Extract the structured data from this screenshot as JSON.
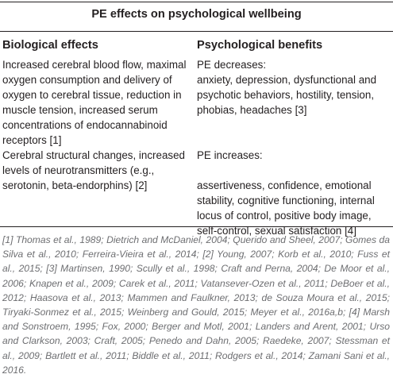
{
  "table": {
    "title": "PE effects on psychological wellbeing",
    "header_left": "Biological effects",
    "header_right": "Psychological benefits",
    "rows": [
      {
        "left": "Increased cerebral blood flow, maximal oxygen consumption and delivery of oxygen to cerebral tissue, reduction in muscle tension, increased serum concentrations of endocannabinoid receptors [1]",
        "right_intro": "PE decreases:",
        "right_body": "anxiety, depression, dysfunctional and psychotic behaviors, hostility, tension, phobias, headaches [3]"
      },
      {
        "left": "Cerebral structural changes, increased levels of neurotransmitters (e.g., serotonin, beta-endorphins) [2]",
        "right_intro": "PE increases:",
        "right_body": "assertiveness, confidence, emotional stability, cognitive functioning, internal locus of control, positive body image, self-control, sexual satisfaction [4]"
      }
    ],
    "footnote": "[1] Thomas et al., 1989; Dietrich and McDaniel, 2004; Querido and Sheel, 2007; Gomes da Silva et al., 2010; Ferreira-Vieira et al., 2014; [2] Young, 2007; Korb et al., 2010; Fuss et al., 2015; [3] Martinsen, 1990; Scully et al., 1998; Craft and Perna, 2004; De Moor et al., 2006; Knapen et al., 2009; Carek et al., 2011; Vatansever-Ozen et al., 2011; DeBoer et al., 2012; Haasova et al., 2013; Mammen and Faulkner, 2013; de Souza Moura et al., 2015; Tiryaki-Sonmez et al., 2015; Weinberg and Gould, 2015; Meyer et al., 2016a,b; [4] Marsh and Sonstroem, 1995; Fox, 2000; Berger and Motl, 2001; Landers and Arent, 2001; Urso and Clarkson, 2003; Craft, 2005; Penedo and Dahn, 2005; Raedeke, 2007; Stessman et al., 2009; Bartlett et al., 2011; Biddle et al., 2011; Rodgers et al., 2014; Zamani Sani et al., 2016."
  }
}
